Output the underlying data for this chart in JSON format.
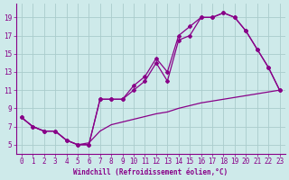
{
  "xlabel": "Windchill (Refroidissement éolien,°C)",
  "bg_color": "#ceeaea",
  "line_color": "#880088",
  "grid_color": "#aacccc",
  "line1_x": [
    0,
    1,
    2,
    3,
    4,
    5,
    6,
    7,
    8,
    9,
    10,
    11,
    12,
    13,
    14,
    15,
    16,
    17,
    18,
    19,
    20,
    21,
    22,
    23
  ],
  "line1_y": [
    8.0,
    7.0,
    6.5,
    6.5,
    5.5,
    5.0,
    5.0,
    10.0,
    10.0,
    10.0,
    11.0,
    12.0,
    14.0,
    12.0,
    16.5,
    17.0,
    19.0,
    19.0,
    19.5,
    19.0,
    17.5,
    15.5,
    13.5,
    11.0
  ],
  "line2_x": [
    0,
    1,
    2,
    3,
    4,
    5,
    6,
    7,
    8,
    9,
    10,
    11,
    12,
    13,
    14,
    15,
    16,
    17,
    18,
    19,
    20,
    21,
    22,
    23
  ],
  "line2_y": [
    8.0,
    7.0,
    6.5,
    6.5,
    5.5,
    5.0,
    5.0,
    10.0,
    10.0,
    10.0,
    11.5,
    12.5,
    14.5,
    13.0,
    17.0,
    18.0,
    19.0,
    19.0,
    19.5,
    19.0,
    17.5,
    15.5,
    13.5,
    11.0
  ],
  "line3_x": [
    0,
    1,
    2,
    3,
    4,
    5,
    6,
    7,
    8,
    9,
    10,
    11,
    12,
    13,
    14,
    15,
    16,
    17,
    18,
    19,
    20,
    21,
    22,
    23
  ],
  "line3_y": [
    8.0,
    7.0,
    6.5,
    6.5,
    5.5,
    5.0,
    5.2,
    6.5,
    7.2,
    7.5,
    7.8,
    8.1,
    8.4,
    8.6,
    9.0,
    9.3,
    9.6,
    9.8,
    10.0,
    10.2,
    10.4,
    10.6,
    10.8,
    11.0
  ],
  "ylim": [
    4.0,
    20.5
  ],
  "xlim": [
    -0.5,
    23.5
  ],
  "yticks": [
    5,
    7,
    9,
    11,
    13,
    15,
    17,
    19
  ],
  "xticks": [
    0,
    1,
    2,
    3,
    4,
    5,
    6,
    7,
    8,
    9,
    10,
    11,
    12,
    13,
    14,
    15,
    16,
    17,
    18,
    19,
    20,
    21,
    22,
    23
  ],
  "marker": "D",
  "markersize": 2.0,
  "linewidth": 0.9,
  "tick_labelsize": 5.5,
  "xlabel_fontsize": 5.5
}
